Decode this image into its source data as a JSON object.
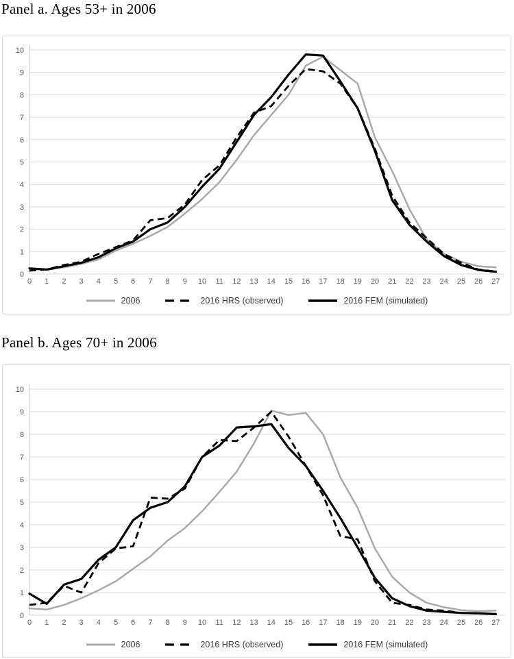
{
  "panels": [
    {
      "title": "Panel a. Ages 53+ in 2006"
    },
    {
      "title": "Panel b. Ages 70+ in 2006"
    }
  ],
  "colors": {
    "background": "#ffffff",
    "gridline": "#d9d9d9",
    "axis_line": "#c6c6c6",
    "axis_text": "#595959",
    "legend_text": "#3a3a3a",
    "frame_border": "#d9d9d9",
    "gray_series": "#a9a9a9",
    "black_series": "#000000"
  },
  "legend": {
    "items": [
      {
        "label": "2006"
      },
      {
        "label": "2016 HRS (observed)"
      },
      {
        "label": "2016 FEM (simulated)"
      }
    ]
  },
  "chart_data": [
    {
      "type": "line",
      "title": "Panel a. Ages 53+ in 2006",
      "xlabel": "",
      "ylabel": "",
      "ylim": [
        0,
        10
      ],
      "ytick_step": 1,
      "grid": true,
      "legend_position": "bottom",
      "x": [
        0,
        1,
        2,
        3,
        4,
        5,
        6,
        7,
        8,
        9,
        10,
        11,
        12,
        13,
        14,
        15,
        16,
        17,
        18,
        19,
        20,
        21,
        22,
        23,
        24,
        25,
        26,
        27
      ],
      "series": [
        {
          "name": "2006",
          "color": "#a9a9a9",
          "dash": "solid",
          "width": 2.5,
          "values": [
            0.25,
            0.2,
            0.3,
            0.45,
            0.65,
            1.05,
            1.35,
            1.7,
            2.1,
            2.7,
            3.35,
            4.1,
            5.1,
            6.2,
            7.1,
            8.0,
            9.3,
            9.7,
            9.1,
            8.5,
            6.1,
            4.6,
            2.9,
            1.55,
            0.9,
            0.55,
            0.35,
            0.3
          ]
        },
        {
          "name": "2016 HRS (observed)",
          "color": "#000000",
          "dash": "dashed",
          "width": 2.8,
          "values": [
            0.15,
            0.2,
            0.4,
            0.55,
            0.9,
            1.2,
            1.5,
            2.4,
            2.5,
            3.1,
            4.2,
            4.85,
            6.1,
            7.2,
            7.5,
            8.4,
            9.15,
            9.05,
            8.5,
            7.4,
            5.6,
            3.5,
            2.3,
            1.6,
            0.9,
            0.5,
            0.2,
            0.12
          ]
        },
        {
          "name": "2016 FEM (simulated)",
          "color": "#000000",
          "dash": "solid",
          "width": 3.2,
          "values": [
            0.25,
            0.2,
            0.35,
            0.5,
            0.75,
            1.15,
            1.45,
            2.0,
            2.3,
            3.0,
            3.9,
            4.7,
            5.9,
            7.1,
            7.9,
            8.9,
            9.8,
            9.75,
            8.6,
            7.4,
            5.5,
            3.3,
            2.2,
            1.45,
            0.8,
            0.4,
            0.18,
            0.1
          ]
        }
      ]
    },
    {
      "type": "line",
      "title": "Panel b. Ages 70+ in 2006",
      "xlabel": "",
      "ylabel": "",
      "ylim": [
        0,
        10
      ],
      "ytick_step": 1,
      "grid": true,
      "legend_position": "bottom",
      "x": [
        0,
        1,
        2,
        3,
        4,
        5,
        6,
        7,
        8,
        9,
        10,
        11,
        12,
        13,
        14,
        15,
        16,
        17,
        18,
        19,
        20,
        21,
        22,
        23,
        24,
        25,
        26,
        27
      ],
      "series": [
        {
          "name": "2006",
          "color": "#a9a9a9",
          "dash": "solid",
          "width": 2.5,
          "values": [
            0.3,
            0.25,
            0.45,
            0.75,
            1.1,
            1.5,
            2.05,
            2.6,
            3.3,
            3.85,
            4.6,
            5.45,
            6.35,
            7.6,
            9.05,
            8.85,
            8.95,
            8.0,
            6.1,
            4.75,
            2.95,
            1.7,
            1.0,
            0.55,
            0.35,
            0.22,
            0.18,
            0.2
          ]
        },
        {
          "name": "2016 HRS (observed)",
          "color": "#000000",
          "dash": "dashed",
          "width": 2.8,
          "values": [
            0.45,
            0.55,
            1.3,
            1.0,
            2.3,
            2.95,
            3.05,
            5.2,
            5.15,
            5.6,
            7.0,
            7.75,
            7.7,
            8.3,
            9.0,
            7.9,
            6.6,
            5.3,
            3.5,
            3.35,
            1.5,
            0.55,
            0.45,
            0.25,
            0.2,
            0.1,
            0.08,
            0.05
          ]
        },
        {
          "name": "2016 FEM (simulated)",
          "color": "#000000",
          "dash": "solid",
          "width": 3.2,
          "values": [
            0.95,
            0.5,
            1.35,
            1.6,
            2.45,
            3.0,
            4.2,
            4.75,
            5.0,
            5.7,
            7.0,
            7.5,
            8.3,
            8.35,
            8.45,
            7.4,
            6.6,
            5.5,
            4.3,
            3.0,
            1.65,
            0.75,
            0.4,
            0.2,
            0.15,
            0.1,
            0.08,
            0.05
          ]
        }
      ]
    }
  ]
}
